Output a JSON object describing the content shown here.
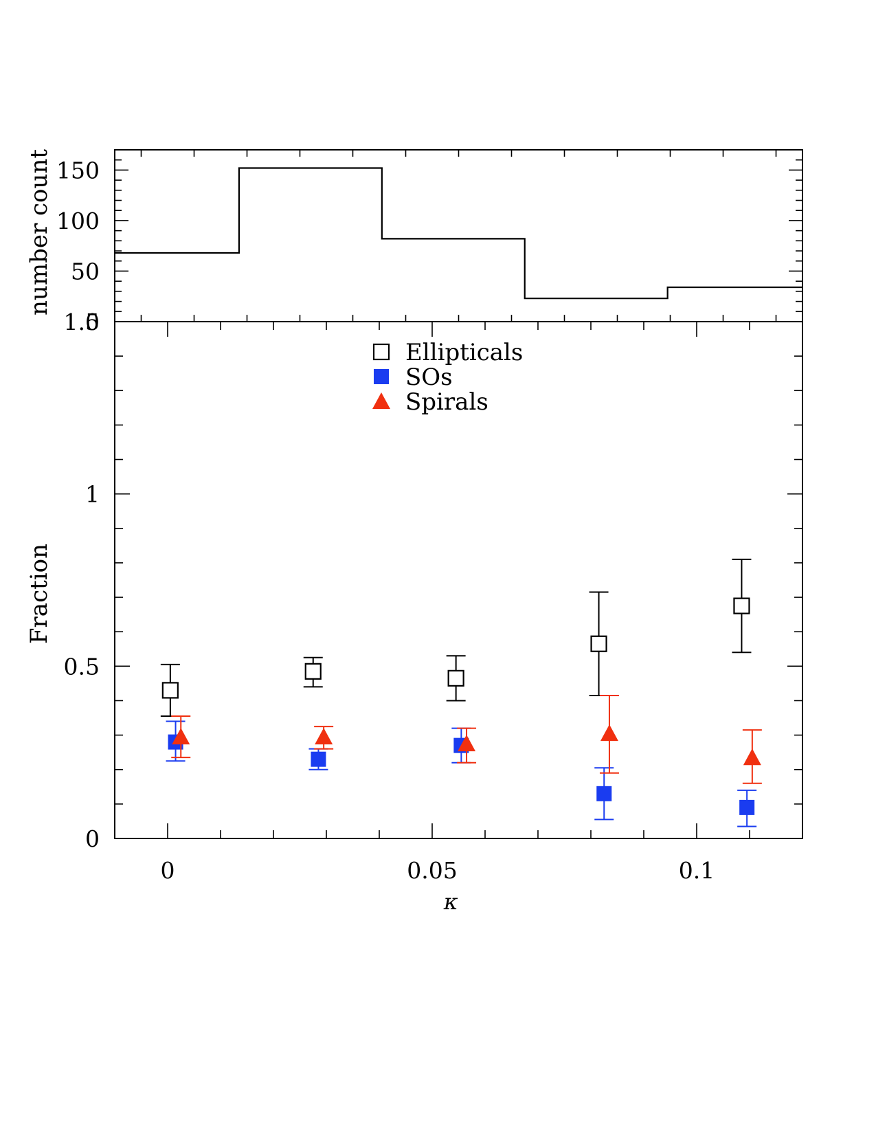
{
  "chart_data": [
    {
      "type": "line",
      "subtype": "step-histogram",
      "ylabel": "number count",
      "ylim": [
        0,
        170
      ],
      "yticks": [
        0,
        50,
        100,
        150
      ],
      "ytick_labels": [
        "0",
        "50",
        "100",
        "150"
      ],
      "bins": [
        {
          "x0": -0.01,
          "x1": 0.0135,
          "count": 68
        },
        {
          "x0": 0.0135,
          "x1": 0.0405,
          "count": 152
        },
        {
          "x0": 0.0405,
          "x1": 0.0675,
          "count": 82
        },
        {
          "x0": 0.0675,
          "x1": 0.0945,
          "count": 23
        },
        {
          "x0": 0.0945,
          "x1": 0.12,
          "count": 34
        }
      ],
      "color": "#000000"
    },
    {
      "type": "scatter",
      "xlabel": "κ",
      "ylabel": "Fraction",
      "xlim": [
        -0.01,
        0.12
      ],
      "ylim": [
        0,
        1.5
      ],
      "xticks": [
        0,
        0.05,
        0.1
      ],
      "xtick_labels": [
        "0",
        "0.05",
        "0.1"
      ],
      "yticks": [
        0,
        0.5,
        1
      ],
      "ytick_labels": [
        "0",
        "0.5",
        "1"
      ],
      "top_label": "1.5",
      "legend_position": "top-center",
      "series": [
        {
          "name": "Ellipticals",
          "marker": "open-square",
          "color": "#000000",
          "points": [
            {
              "x": 0.0005,
              "y": 0.43,
              "lo": 0.355,
              "hi": 0.505
            },
            {
              "x": 0.0275,
              "y": 0.485,
              "lo": 0.44,
              "hi": 0.525
            },
            {
              "x": 0.0545,
              "y": 0.465,
              "lo": 0.4,
              "hi": 0.53
            },
            {
              "x": 0.0815,
              "y": 0.565,
              "lo": 0.415,
              "hi": 0.715
            },
            {
              "x": 0.1085,
              "y": 0.675,
              "lo": 0.54,
              "hi": 0.81
            }
          ]
        },
        {
          "name": "SOs",
          "marker": "filled-square",
          "color": "#1a3cf0",
          "points": [
            {
              "x": 0.0015,
              "y": 0.28,
              "lo": 0.225,
              "hi": 0.34
            },
            {
              "x": 0.0285,
              "y": 0.23,
              "lo": 0.2,
              "hi": 0.26
            },
            {
              "x": 0.0555,
              "y": 0.27,
              "lo": 0.22,
              "hi": 0.32
            },
            {
              "x": 0.0825,
              "y": 0.13,
              "lo": 0.055,
              "hi": 0.205
            },
            {
              "x": 0.1095,
              "y": 0.09,
              "lo": 0.035,
              "hi": 0.14
            }
          ]
        },
        {
          "name": "Spirals",
          "marker": "filled-triangle",
          "color": "#f03010",
          "points": [
            {
              "x": 0.0025,
              "y": 0.295,
              "lo": 0.235,
              "hi": 0.355
            },
            {
              "x": 0.0295,
              "y": 0.295,
              "lo": 0.26,
              "hi": 0.325
            },
            {
              "x": 0.0565,
              "y": 0.275,
              "lo": 0.22,
              "hi": 0.32
            },
            {
              "x": 0.0835,
              "y": 0.305,
              "lo": 0.19,
              "hi": 0.415
            },
            {
              "x": 0.1105,
              "y": 0.235,
              "lo": 0.16,
              "hi": 0.315
            }
          ]
        }
      ]
    }
  ]
}
